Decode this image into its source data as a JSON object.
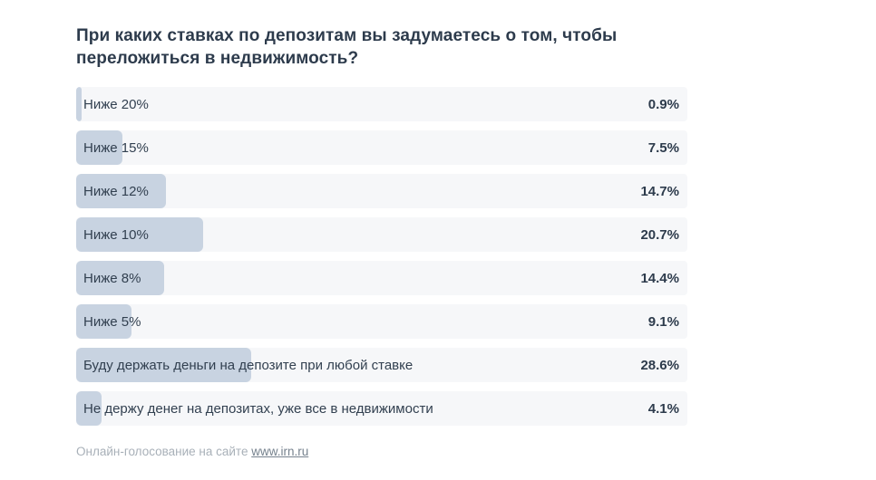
{
  "title": "При каких ставках по депозитам вы задумаетесь о том, чтобы переложиться в недвижимость?",
  "chart_data": {
    "type": "bar",
    "orientation": "horizontal",
    "title": "При каких ставках по депозитам вы задумаетесь о том, чтобы переложиться в недвижимость?",
    "categories": [
      "Ниже 20%",
      "Ниже 15%",
      "Ниже 12%",
      "Ниже 10%",
      "Ниже 8%",
      "Ниже 5%",
      "Буду держать деньги на депозите при любой ставке",
      "Не держу денег на депозитах, уже все в недвижимости"
    ],
    "values": [
      0.9,
      7.5,
      14.7,
      20.7,
      14.4,
      9.1,
      28.6,
      4.1
    ],
    "value_labels": [
      "0.9%",
      "7.5%",
      "14.7%",
      "20.7%",
      "14.4%",
      "9.1%",
      "28.6%",
      "4.1%"
    ],
    "xlim": [
      0,
      100
    ],
    "grid": false,
    "legend": "none",
    "bar_color": "#c8d3e1",
    "track_color": "#f6f7f9"
  },
  "footer": {
    "text": "Онлайн-голосование на сайте ",
    "link_text": "www.irn.ru"
  },
  "colors": {
    "page_background": "#ffffff",
    "title_text": "#2d3b4c",
    "label_text": "#324050",
    "value_text": "#2d3b4c",
    "bar": "#c8d3e1",
    "row_background": "#f6f7f9",
    "footer_text": "#a8b0b8",
    "link_text": "#76828e"
  }
}
